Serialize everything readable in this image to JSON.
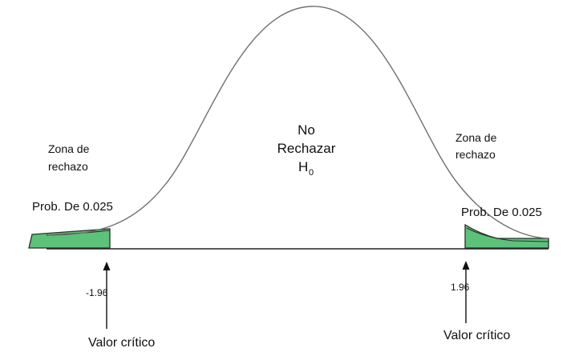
{
  "diagram": {
    "center_label": {
      "line1": "No",
      "line2": "Rechazar",
      "line3_main": "H",
      "line3_sub": "0"
    },
    "left": {
      "zone_line1": "Zona de",
      "zone_line2": "rechazo",
      "prob": "Prob. De 0.025",
      "critical_value": "-1.96",
      "critical_label": "Valor crítico"
    },
    "right": {
      "zone_line1": "Zona de",
      "zone_line2": "rechazo",
      "prob": "Prob. De 0.025",
      "critical_value": "1.96",
      "critical_label": "Valor crítico"
    },
    "colors": {
      "curve": "#707070",
      "axis": "#222222",
      "tail_fill": "#5cc27a",
      "tail_stroke": "#2c2c2c"
    }
  }
}
